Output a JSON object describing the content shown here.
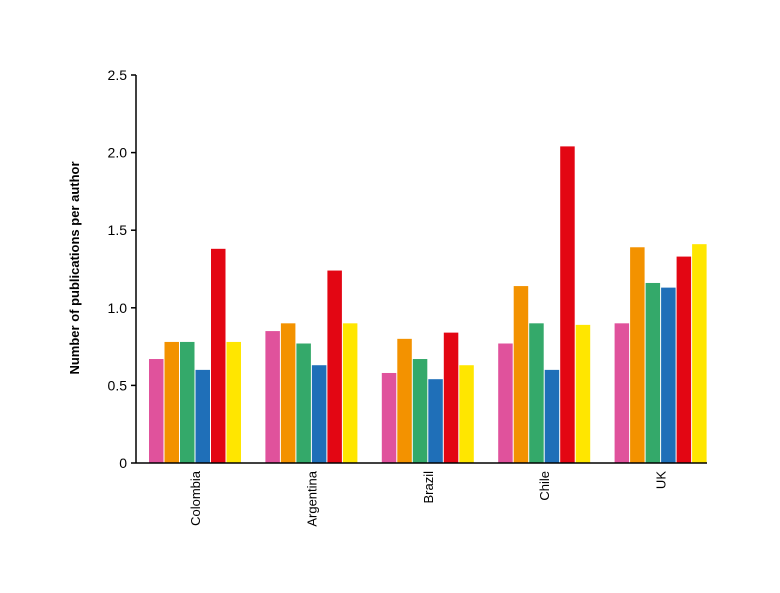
{
  "chart_data": {
    "type": "bar",
    "title": "",
    "xlabel": "",
    "ylabel": "Number of publications per author",
    "ylim": [
      0,
      2.5
    ],
    "yticks": [
      "0",
      "0.5",
      "1.0",
      "1.5",
      "2.0",
      "2.5"
    ],
    "ytick_values": [
      0,
      0.5,
      1.0,
      1.5,
      2.0,
      2.5
    ],
    "grid": false,
    "legend": "none",
    "categories": [
      "Colombia",
      "Argentina",
      "Brazil",
      "Chile",
      "UK"
    ],
    "series": [
      {
        "color": "#e0529c",
        "values": [
          0.67,
          0.85,
          0.58,
          0.77,
          0.9
        ]
      },
      {
        "color": "#f39200",
        "values": [
          0.78,
          0.9,
          0.8,
          1.14,
          1.39
        ]
      },
      {
        "color": "#34a96a",
        "values": [
          0.78,
          0.77,
          0.67,
          0.9,
          1.16
        ]
      },
      {
        "color": "#1f6fb8",
        "values": [
          0.6,
          0.63,
          0.54,
          0.6,
          1.13
        ]
      },
      {
        "color": "#e30613",
        "values": [
          1.38,
          1.24,
          0.84,
          2.04,
          1.33
        ]
      },
      {
        "color": "#ffe600",
        "values": [
          0.78,
          0.9,
          0.63,
          0.89,
          1.41
        ]
      }
    ]
  }
}
